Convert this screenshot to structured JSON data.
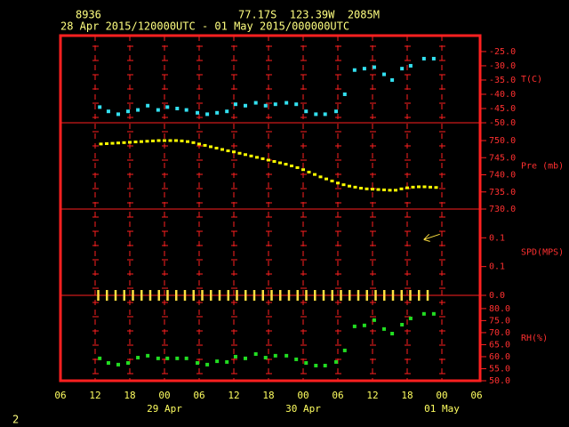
{
  "station": "8936",
  "location": "77.17S  123.39W  2085M",
  "period": "28 Apr 2015/120000UTC - 01 May 2015/000000UTC",
  "page_number": "2",
  "x_axis": {
    "xlim": [
      0,
      72
    ],
    "xticks": [
      {
        "value": 0,
        "label": "06"
      },
      {
        "value": 6,
        "label": "12"
      },
      {
        "value": 12,
        "label": "18"
      },
      {
        "value": 18,
        "label": "00"
      },
      {
        "value": 24,
        "label": "06"
      },
      {
        "value": 30,
        "label": "12"
      },
      {
        "value": 36,
        "label": "18"
      },
      {
        "value": 42,
        "label": "00"
      },
      {
        "value": 48,
        "label": "06"
      },
      {
        "value": 54,
        "label": "12"
      },
      {
        "value": 60,
        "label": "18"
      },
      {
        "value": 66,
        "label": "00"
      },
      {
        "value": 72,
        "label": "06"
      }
    ],
    "date_ticks": [
      {
        "value": 18,
        "label": "29 Apr"
      },
      {
        "value": 42,
        "label": "30 Apr"
      },
      {
        "value": 66,
        "label": "01 May"
      }
    ]
  },
  "chart_data": [
    {
      "type": "scatter",
      "axis_label": "T(C)",
      "ylim": [
        -50,
        -19.4
      ],
      "yticks": [
        {
          "value": -25,
          "label": "-25.0"
        },
        {
          "value": -30,
          "label": "-30.0"
        },
        {
          "value": -35,
          "label": "-35.0"
        },
        {
          "value": -40,
          "label": "-40.0"
        },
        {
          "value": -45,
          "label": "-45.0"
        },
        {
          "value": -50,
          "label": "-50.0"
        }
      ],
      "series": [
        {
          "color": "#33e0f0",
          "x": [
            6.8,
            8.3,
            10.0,
            11.7,
            13.4,
            15.1,
            16.9,
            18.5,
            20.2,
            21.8,
            23.7,
            25.4,
            27.1,
            28.8,
            30.3,
            32.0,
            33.8,
            35.5,
            37.2,
            39.1,
            40.8,
            42.5,
            44.2,
            45.8,
            47.7,
            49.2,
            50.9,
            52.6,
            54.3,
            56.0,
            57.4,
            59.1,
            60.6,
            62.9,
            64.6
          ],
          "values": [
            -44.5,
            -46,
            -47,
            -46,
            -45.5,
            -44,
            -45.5,
            -44.5,
            -45,
            -45.5,
            -46.5,
            -47,
            -46.5,
            -46,
            -43.5,
            -44,
            -43,
            -44,
            -43.5,
            -43,
            -43.5,
            -46,
            -47,
            -47,
            -46,
            -40,
            -31.5,
            -31,
            -30.5,
            -33,
            -35,
            -31,
            -30,
            -27.5,
            -27.5
          ]
        }
      ]
    },
    {
      "type": "scatter",
      "axis_label": "Pre (mb)",
      "ylim": [
        730,
        755.2
      ],
      "yticks": [
        {
          "value": 750,
          "label": "750.0"
        },
        {
          "value": 745,
          "label": "745.0"
        },
        {
          "value": 740,
          "label": "740.0"
        },
        {
          "value": 735,
          "label": "735.0"
        },
        {
          "value": 730,
          "label": "730.0"
        }
      ],
      "series": [
        {
          "color": "#ffff00",
          "x": [
            7,
            8,
            9,
            10,
            11,
            12,
            13,
            14,
            15,
            16,
            17,
            18,
            19,
            20,
            21,
            22,
            23,
            24,
            25,
            26,
            27,
            28,
            29,
            30,
            31,
            32,
            33,
            34,
            35,
            36,
            37,
            38,
            39,
            40,
            41,
            42,
            43,
            44,
            45,
            46,
            47,
            48,
            49,
            50,
            51,
            52,
            53,
            54,
            55,
            56,
            57,
            58,
            59,
            60,
            61,
            62,
            63,
            64,
            65
          ],
          "values": [
            749.0,
            749.1,
            749.2,
            749.3,
            749.4,
            749.5,
            749.6,
            749.7,
            749.8,
            749.9,
            750.0,
            750.0,
            750.0,
            750.0,
            749.9,
            749.7,
            749.4,
            749.0,
            748.6,
            748.2,
            747.8,
            747.4,
            747.0,
            746.7,
            746.3,
            745.9,
            745.5,
            745.1,
            744.7,
            744.3,
            743.9,
            743.5,
            743.1,
            742.6,
            742.1,
            741.5,
            740.8,
            740.1,
            739.4,
            738.8,
            738.2,
            737.6,
            737.1,
            736.7,
            736.4,
            736.1,
            735.9,
            735.8,
            735.7,
            735.6,
            735.5,
            735.5,
            735.9,
            736.2,
            736.4,
            736.5,
            736.5,
            736.4,
            736.3
          ]
        }
      ]
    },
    {
      "type": "wind",
      "axis_label": "SPD(MPS)",
      "ylim": [
        0,
        0.15
      ],
      "yticks": [
        0.1,
        {
          "value": 0.05,
          "label": "0.1"
        },
        {
          "value": 0,
          "label": "0.0"
        }
      ],
      "series": [
        {
          "color": "#ffe040",
          "x": [
            6.5,
            8,
            9.5,
            11,
            12.5,
            14,
            15.5,
            17,
            18.5,
            20,
            21.5,
            23,
            24.5,
            26,
            27.5,
            29,
            30.5,
            32,
            33.5,
            35,
            36.5,
            38,
            39.5,
            41,
            42.5,
            44,
            45.5,
            47,
            48.5,
            50,
            51.5,
            53,
            54.5,
            56,
            57.5,
            59,
            60.5,
            62,
            63.5,
            63.8
          ],
          "values": [
            0,
            0,
            0,
            0,
            0,
            0,
            0,
            0,
            0,
            0,
            0,
            0,
            0,
            0,
            0,
            0,
            0,
            0,
            0,
            0,
            0,
            0,
            0,
            0,
            0,
            0,
            0,
            0,
            0,
            0,
            0,
            0,
            0,
            0,
            0,
            0,
            0,
            0,
            0,
            0.1
          ]
        }
      ]
    },
    {
      "type": "scatter",
      "axis_label": "RH(%)",
      "ylim": [
        50,
        85.5
      ],
      "yticks": [
        {
          "value": 80,
          "label": "80.0"
        },
        {
          "value": 75,
          "label": "75.0"
        },
        {
          "value": 70,
          "label": "70.0"
        },
        {
          "value": 65,
          "label": "65.0"
        },
        {
          "value": 60,
          "label": "60.0"
        },
        {
          "value": 55,
          "label": "55.0"
        },
        {
          "value": 50,
          "label": "50.0"
        }
      ],
      "series": [
        {
          "color": "#22dd22",
          "x": [
            6.8,
            8.3,
            10.0,
            11.7,
            13.4,
            15.1,
            16.9,
            18.5,
            20.2,
            21.8,
            23.7,
            25.4,
            27.1,
            28.8,
            30.3,
            32.0,
            33.8,
            35.5,
            37.2,
            39.1,
            40.8,
            42.5,
            44.2,
            45.8,
            47.7,
            49.2,
            50.9,
            52.6,
            54.3,
            56.0,
            57.4,
            59.1,
            60.6,
            62.9,
            64.6
          ],
          "values": [
            59.3,
            57.4,
            56.7,
            57.4,
            59.6,
            60.4,
            59.3,
            59.3,
            59.3,
            59.3,
            57.4,
            56.7,
            58.1,
            57.8,
            60,
            59.3,
            61.1,
            59.6,
            60.4,
            60.4,
            58.9,
            57.4,
            56.3,
            56.3,
            57.8,
            62.6,
            72.6,
            73,
            75.2,
            71.5,
            69.6,
            73.3,
            75.9,
            77.8,
            77.8
          ]
        }
      ]
    }
  ]
}
